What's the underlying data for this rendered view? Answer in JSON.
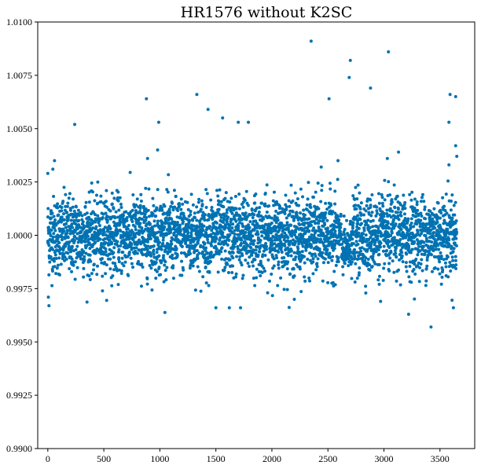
{
  "chart_data": {
    "type": "scatter",
    "title": "HR1576 without K2SC",
    "xlabel": "",
    "ylabel": "",
    "xlim": [
      -90,
      3810
    ],
    "ylim": [
      0.99,
      1.01
    ],
    "xticks": [
      0,
      500,
      1000,
      1500,
      2000,
      2500,
      3000,
      3500
    ],
    "xtick_labels": [
      "0",
      "500",
      "1000",
      "1500",
      "2000",
      "2500",
      "3000",
      "3500"
    ],
    "yticks": [
      0.99,
      0.9925,
      0.995,
      0.9975,
      1.0,
      1.0025,
      1.005,
      1.0075,
      1.01
    ],
    "ytick_labels": [
      "0.9900",
      "0.9925",
      "0.9950",
      "0.9975",
      "1.0000",
      "1.0025",
      "1.0050",
      "1.0075",
      "1.0100"
    ],
    "grid": false,
    "marker_color": "#0072b2",
    "series": [
      {
        "n_points_approx": 3650,
        "flux_center": 1.0,
        "flux_scatter": 0.0009,
        "outliers": [
          {
            "x": 5,
            "y": 0.9971
          },
          {
            "x": 10,
            "y": 0.9967
          },
          {
            "x": 0,
            "y": 1.0029
          },
          {
            "x": 45,
            "y": 1.0031
          },
          {
            "x": 60,
            "y": 1.0035
          },
          {
            "x": 240,
            "y": 1.0052
          },
          {
            "x": 880,
            "y": 1.0064
          },
          {
            "x": 890,
            "y": 1.0036
          },
          {
            "x": 980,
            "y": 1.004
          },
          {
            "x": 990,
            "y": 1.0053
          },
          {
            "x": 1330,
            "y": 1.0066
          },
          {
            "x": 1430,
            "y": 1.0059
          },
          {
            "x": 1560,
            "y": 1.0055
          },
          {
            "x": 1700,
            "y": 1.0053
          },
          {
            "x": 1790,
            "y": 1.0053
          },
          {
            "x": 2350,
            "y": 1.0091
          },
          {
            "x": 2440,
            "y": 1.0032
          },
          {
            "x": 2510,
            "y": 1.0064
          },
          {
            "x": 2590,
            "y": 1.0035
          },
          {
            "x": 2690,
            "y": 1.0074
          },
          {
            "x": 2700,
            "y": 1.0082
          },
          {
            "x": 2880,
            "y": 1.0069
          },
          {
            "x": 3030,
            "y": 1.0036
          },
          {
            "x": 3040,
            "y": 1.0086
          },
          {
            "x": 3130,
            "y": 1.0039
          },
          {
            "x": 3590,
            "y": 1.0066
          },
          {
            "x": 3580,
            "y": 1.0053
          },
          {
            "x": 3580,
            "y": 1.0033
          },
          {
            "x": 3640,
            "y": 1.0065
          },
          {
            "x": 3640,
            "y": 1.0042
          },
          {
            "x": 3650,
            "y": 1.0037
          },
          {
            "x": 3420,
            "y": 0.9957
          },
          {
            "x": 3220,
            "y": 0.9963
          },
          {
            "x": 1500,
            "y": 0.9966
          },
          {
            "x": 1620,
            "y": 0.9966
          },
          {
            "x": 1720,
            "y": 0.9966
          },
          {
            "x": 2200,
            "y": 0.997
          },
          {
            "x": 2970,
            "y": 0.9969
          },
          {
            "x": 3620,
            "y": 0.9966
          }
        ]
      }
    ]
  }
}
